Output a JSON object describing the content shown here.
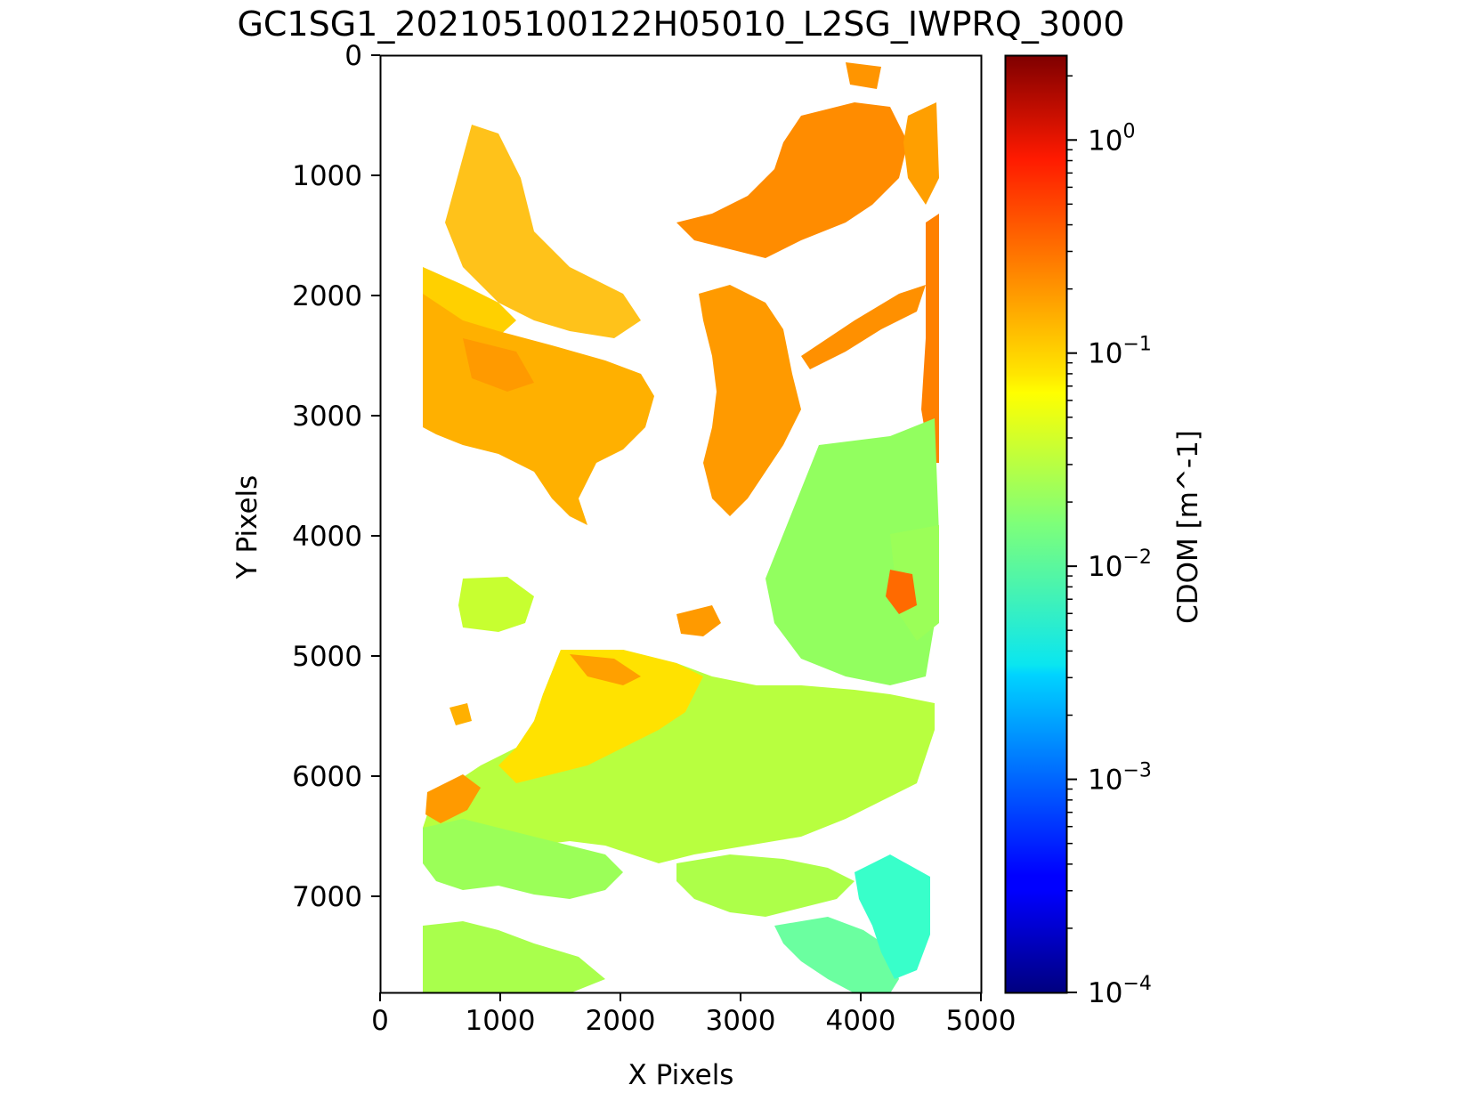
{
  "chart_data": {
    "type": "heatmap",
    "title": "GC1SG1_202105100122H05010_L2SG_IWPRQ_3000",
    "xlabel": "X Pixels",
    "ylabel": "Y Pixels",
    "xlim": [
      0,
      5000
    ],
    "ylim": [
      7800,
      0
    ],
    "x_ticks": [
      "0",
      "1000",
      "2000",
      "3000",
      "4000",
      "5000"
    ],
    "y_ticks": [
      "0",
      "1000",
      "2000",
      "3000",
      "4000",
      "5000",
      "6000",
      "7000"
    ],
    "y_inverted": true,
    "colormap": "jet",
    "color_scale": "log",
    "colorbar": {
      "label": "CDOM [m^-1]",
      "range": [
        0.0001,
        2.5
      ],
      "major_ticks": [
        {
          "value": 0.0001,
          "base": "10",
          "exp": "−4"
        },
        {
          "value": 0.001,
          "base": "10",
          "exp": "−3"
        },
        {
          "value": 0.01,
          "base": "10",
          "exp": "−2"
        },
        {
          "value": 0.1,
          "base": "10",
          "exp": "−1"
        },
        {
          "value": 1,
          "base": "10",
          "exp": "0"
        }
      ]
    },
    "value_summary": {
      "north_and_central_regions": "0.1–0.5 (yellow to orange)",
      "southern_regions": "0.02–0.06 (green to yellow-green)",
      "southeast_edge": "about 0.01 (cyan-green)",
      "no_data": "white (land/cloud masked)"
    }
  }
}
